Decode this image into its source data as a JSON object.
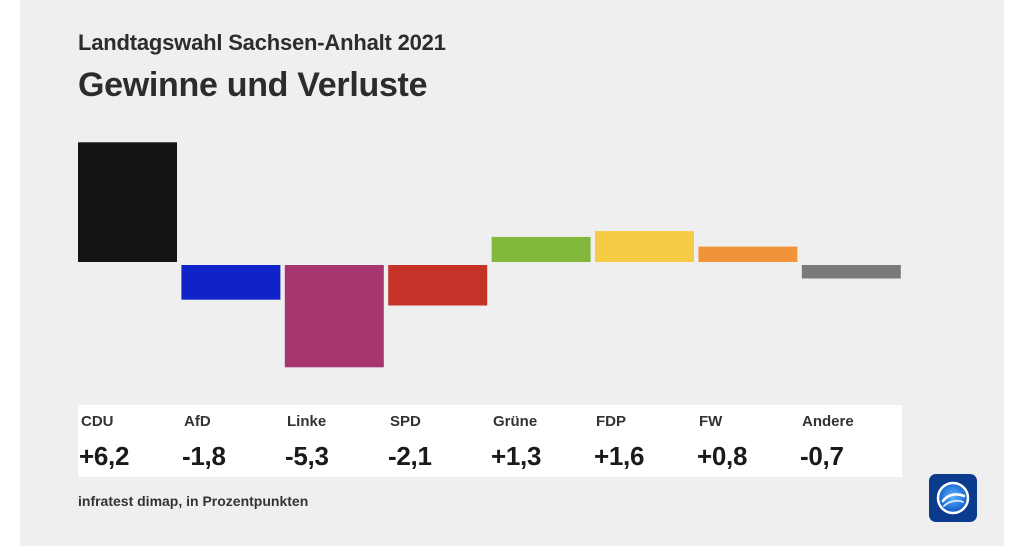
{
  "header": {
    "subtitle": "Landtagswahl Sachsen-Anhalt 2021",
    "title": "Gewinne und Verluste"
  },
  "footer": {
    "source": "infratest dimap, in Prozentpunkten"
  },
  "logo": {
    "icon": "ard-tagesschau-logo-icon"
  },
  "chart_data": {
    "type": "bar",
    "title": "Gewinne und Verluste",
    "subtitle": "Landtagswahl Sachsen-Anhalt 2021",
    "categories": [
      "CDU",
      "AfD",
      "Linke",
      "SPD",
      "Grüne",
      "FDP",
      "FW",
      "Andere"
    ],
    "values": [
      6.2,
      -1.8,
      -5.3,
      -2.1,
      1.3,
      1.6,
      0.8,
      -0.7
    ],
    "value_labels": [
      "+6,2",
      "-1,8",
      "-5,3",
      "-2,1",
      "+1,3",
      "+1,6",
      "+0,8",
      "-0,7"
    ],
    "colors": [
      "#141414",
      "#1023c8",
      "#a7366e",
      "#c53228",
      "#82b93d",
      "#f6cb45",
      "#f29339",
      "#7a7a7c"
    ],
    "ylim": [
      -5.3,
      6.2
    ],
    "grid": false,
    "legend": "none",
    "source": "infratest dimap, in Prozentpunkten"
  }
}
